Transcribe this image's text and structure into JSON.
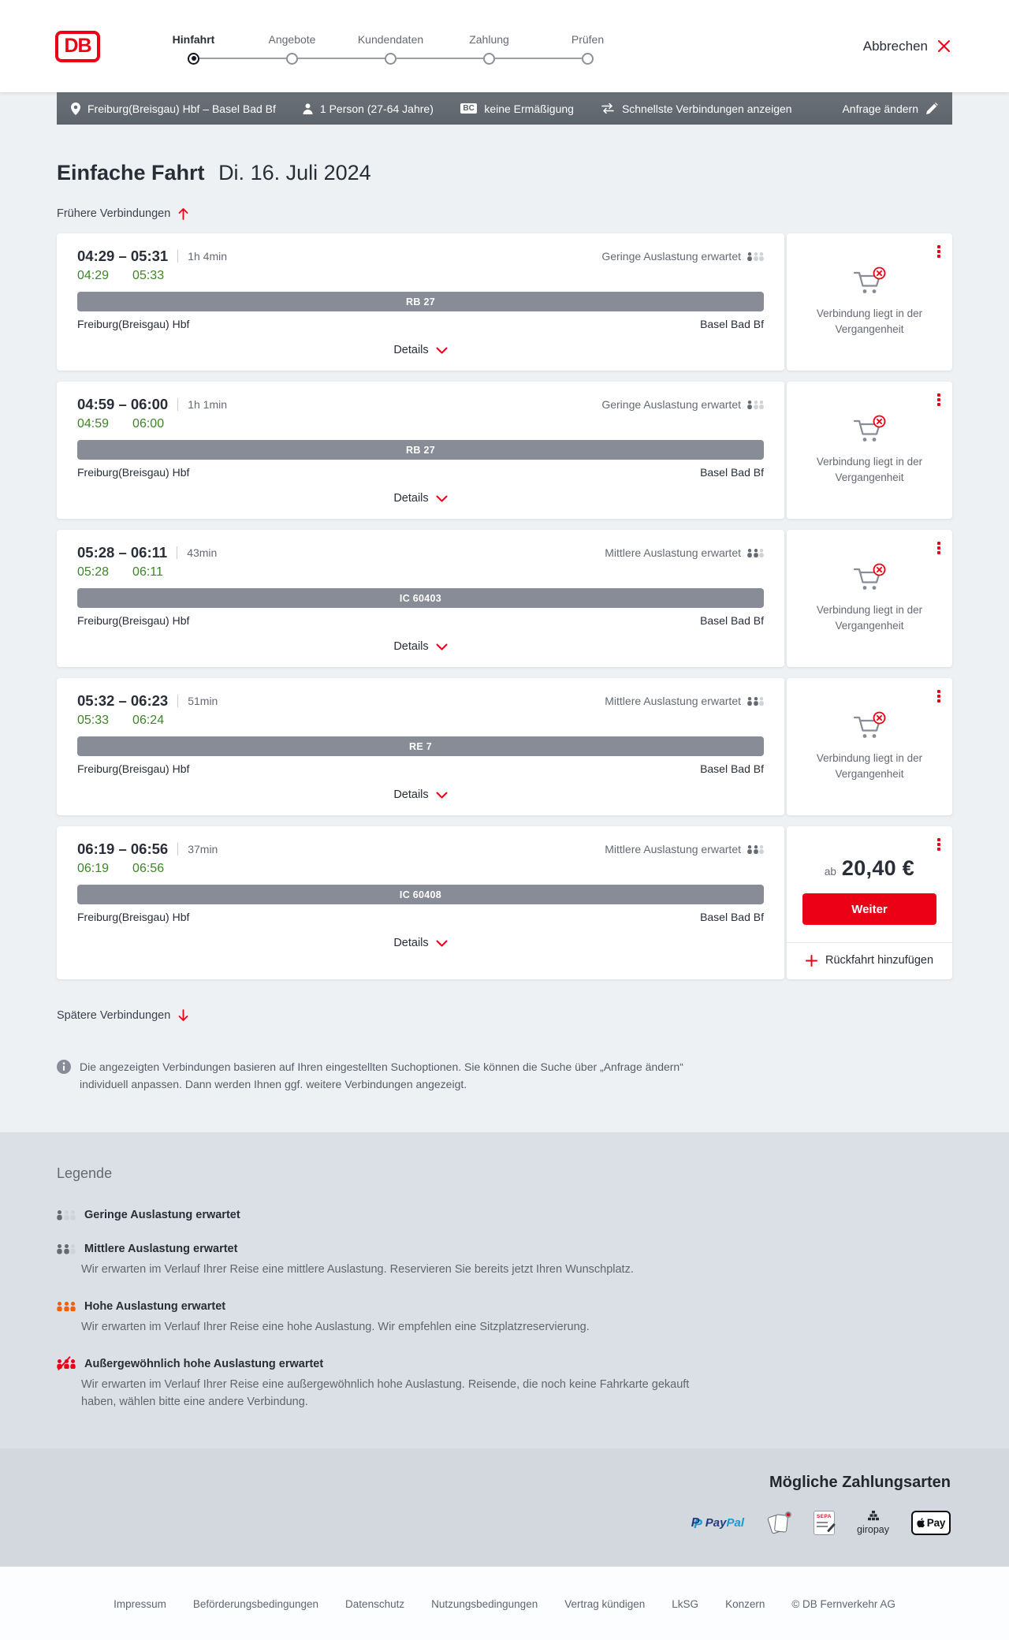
{
  "colors": {
    "db_red": "#ec0016",
    "realtime_green": "#3c8527",
    "occupancy_dark": "#646973",
    "occupancy_light": "#cdd3d9",
    "occupancy_orange": "#f75f00"
  },
  "header": {
    "logo_text": "DB",
    "cancel_label": "Abbrechen",
    "steps": [
      {
        "label": "Hinfahrt",
        "active": true
      },
      {
        "label": "Angebote",
        "active": false
      },
      {
        "label": "Kundendaten",
        "active": false
      },
      {
        "label": "Zahlung",
        "active": false
      },
      {
        "label": "Prüfen",
        "active": false
      }
    ]
  },
  "search_summary": {
    "route": "Freiburg(Breisgau) Hbf – Basel Bad Bf",
    "passengers": "1 Person (27-64 Jahre)",
    "discount_badge": "BC",
    "discount": "keine Ermäßigung",
    "sort_mode": "Schnellste Verbindungen anzeigen",
    "edit_label": "Anfrage ändern"
  },
  "results": {
    "trip_type": "Einfache Fahrt",
    "date": "Di. 16. Juli 2024",
    "earlier_label": "Frühere Verbindungen",
    "later_label": "Spätere Verbindungen",
    "details_label": "Details",
    "past_note": "Verbindung liegt in der Vergangenheit",
    "connections": [
      {
        "schedule": "04:29 – 05:31",
        "duration": "1h 4min",
        "rt_departure": "04:29",
        "rt_arrival": "05:33",
        "train": "RB 27",
        "from": "Freiburg(Breisgau) Hbf",
        "to": "Basel Bad Bf",
        "occupancy": "Geringe Auslastung erwartet",
        "occupancy_level": 1,
        "past": true
      },
      {
        "schedule": "04:59 – 06:00",
        "duration": "1h 1min",
        "rt_departure": "04:59",
        "rt_arrival": "06:00",
        "train": "RB 27",
        "from": "Freiburg(Breisgau) Hbf",
        "to": "Basel Bad Bf",
        "occupancy": "Geringe Auslastung erwartet",
        "occupancy_level": 1,
        "past": true
      },
      {
        "schedule": "05:28 – 06:11",
        "duration": "43min",
        "rt_departure": "05:28",
        "rt_arrival": "06:11",
        "train": "IC 60403",
        "from": "Freiburg(Breisgau) Hbf",
        "to": "Basel Bad Bf",
        "occupancy": "Mittlere Auslastung erwartet",
        "occupancy_level": 2,
        "past": true
      },
      {
        "schedule": "05:32 – 06:23",
        "duration": "51min",
        "rt_departure": "05:33",
        "rt_arrival": "06:24",
        "train": "RE 7",
        "from": "Freiburg(Breisgau) Hbf",
        "to": "Basel Bad Bf",
        "occupancy": "Mittlere Auslastung erwartet",
        "occupancy_level": 2,
        "past": true
      },
      {
        "schedule": "06:19 – 06:56",
        "duration": "37min",
        "rt_departure": "06:19",
        "rt_arrival": "06:56",
        "train": "IC 60408",
        "from": "Freiburg(Breisgau) Hbf",
        "to": "Basel Bad Bf",
        "occupancy": "Mittlere Auslastung erwartet",
        "occupancy_level": 2,
        "past": false,
        "price": {
          "prefix": "ab",
          "amount": "20,40 €",
          "button_label": "Weiter",
          "add_return_label": "Rückfahrt hinzufügen"
        }
      }
    ]
  },
  "info_note": "Die angezeigten Verbindungen basieren auf Ihren eingestellten Suchoptionen. Sie können die Suche über „Anfrage ändern“ individuell anpassen. Dann werden Ihnen ggf. weitere Verbindungen angezeigt.",
  "legend": {
    "title": "Legende",
    "items": [
      {
        "label": "Geringe Auslastung erwartet",
        "level": 1,
        "description": ""
      },
      {
        "label": "Mittlere Auslastung erwartet",
        "level": 2,
        "description": "Wir erwarten im Verlauf Ihrer Reise eine mittlere Auslastung. Reservieren Sie bereits jetzt Ihren Wunschplatz."
      },
      {
        "label": "Hohe Auslastung erwartet",
        "level": 3,
        "description": "Wir erwarten im Verlauf Ihrer Reise eine hohe Auslastung. Wir empfehlen eine Sitzplatzreservierung."
      },
      {
        "label": "Außergewöhnlich hohe Auslastung erwartet",
        "level": 4,
        "description": "Wir erwarten im Verlauf Ihrer Reise eine außergewöhnlich hohe Auslastung. Reisende, die noch keine Fahrkarte gekauft haben, wählen bitte eine andere Verbindung."
      }
    ]
  },
  "payment": {
    "title": "Mögliche Zahlungsarten",
    "paypal": {
      "mark": "P",
      "part1": "Pay",
      "part2": "Pal"
    },
    "sepa_label": "SEPA",
    "giropay_label": "giropay",
    "applepay_label": "Pay"
  },
  "footer": {
    "links": [
      "Impressum",
      "Beförderungsbedingungen",
      "Datenschutz",
      "Nutzungsbedingungen",
      "Vertrag kündigen",
      "LkSG",
      "Konzern"
    ],
    "copyright": "© DB Fernverkehr AG"
  }
}
